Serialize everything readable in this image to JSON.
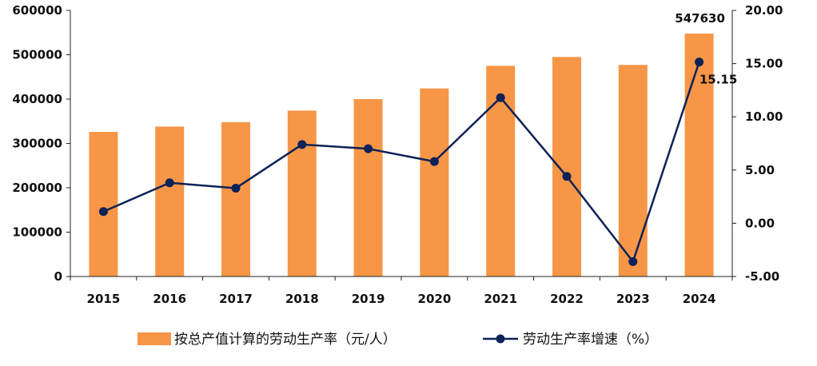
{
  "chart_data": {
    "type": "bar+line",
    "categories": [
      "2015",
      "2016",
      "2017",
      "2018",
      "2019",
      "2020",
      "2021",
      "2022",
      "2023",
      "2024"
    ],
    "series": [
      {
        "name": "按总产值计算的劳动生产率（元/人）",
        "type": "bar",
        "axis": "left",
        "color": "#F79646",
        "values": [
          326000,
          338000,
          348000,
          374000,
          400000,
          424000,
          475000,
          495000,
          477000,
          547630
        ]
      },
      {
        "name": "劳动生产率增速（%）",
        "type": "line",
        "axis": "right",
        "color": "#0D2257",
        "values": [
          1.1,
          3.8,
          3.3,
          7.4,
          7.0,
          5.8,
          11.8,
          4.4,
          -3.6,
          15.15
        ]
      }
    ],
    "y_left": {
      "ylim": [
        0,
        600000
      ],
      "ticks": [
        "0",
        "100000",
        "200000",
        "300000",
        "400000",
        "500000",
        "600000"
      ]
    },
    "y_right": {
      "ylim": [
        -5,
        20
      ],
      "ticks": [
        "-5.00",
        "0.00",
        "5.00",
        "10.00",
        "15.00",
        "20.00"
      ]
    },
    "data_labels": {
      "bar_2024": "547630",
      "line_2024": "15.15"
    },
    "grid": false,
    "legend_position": "bottom"
  }
}
